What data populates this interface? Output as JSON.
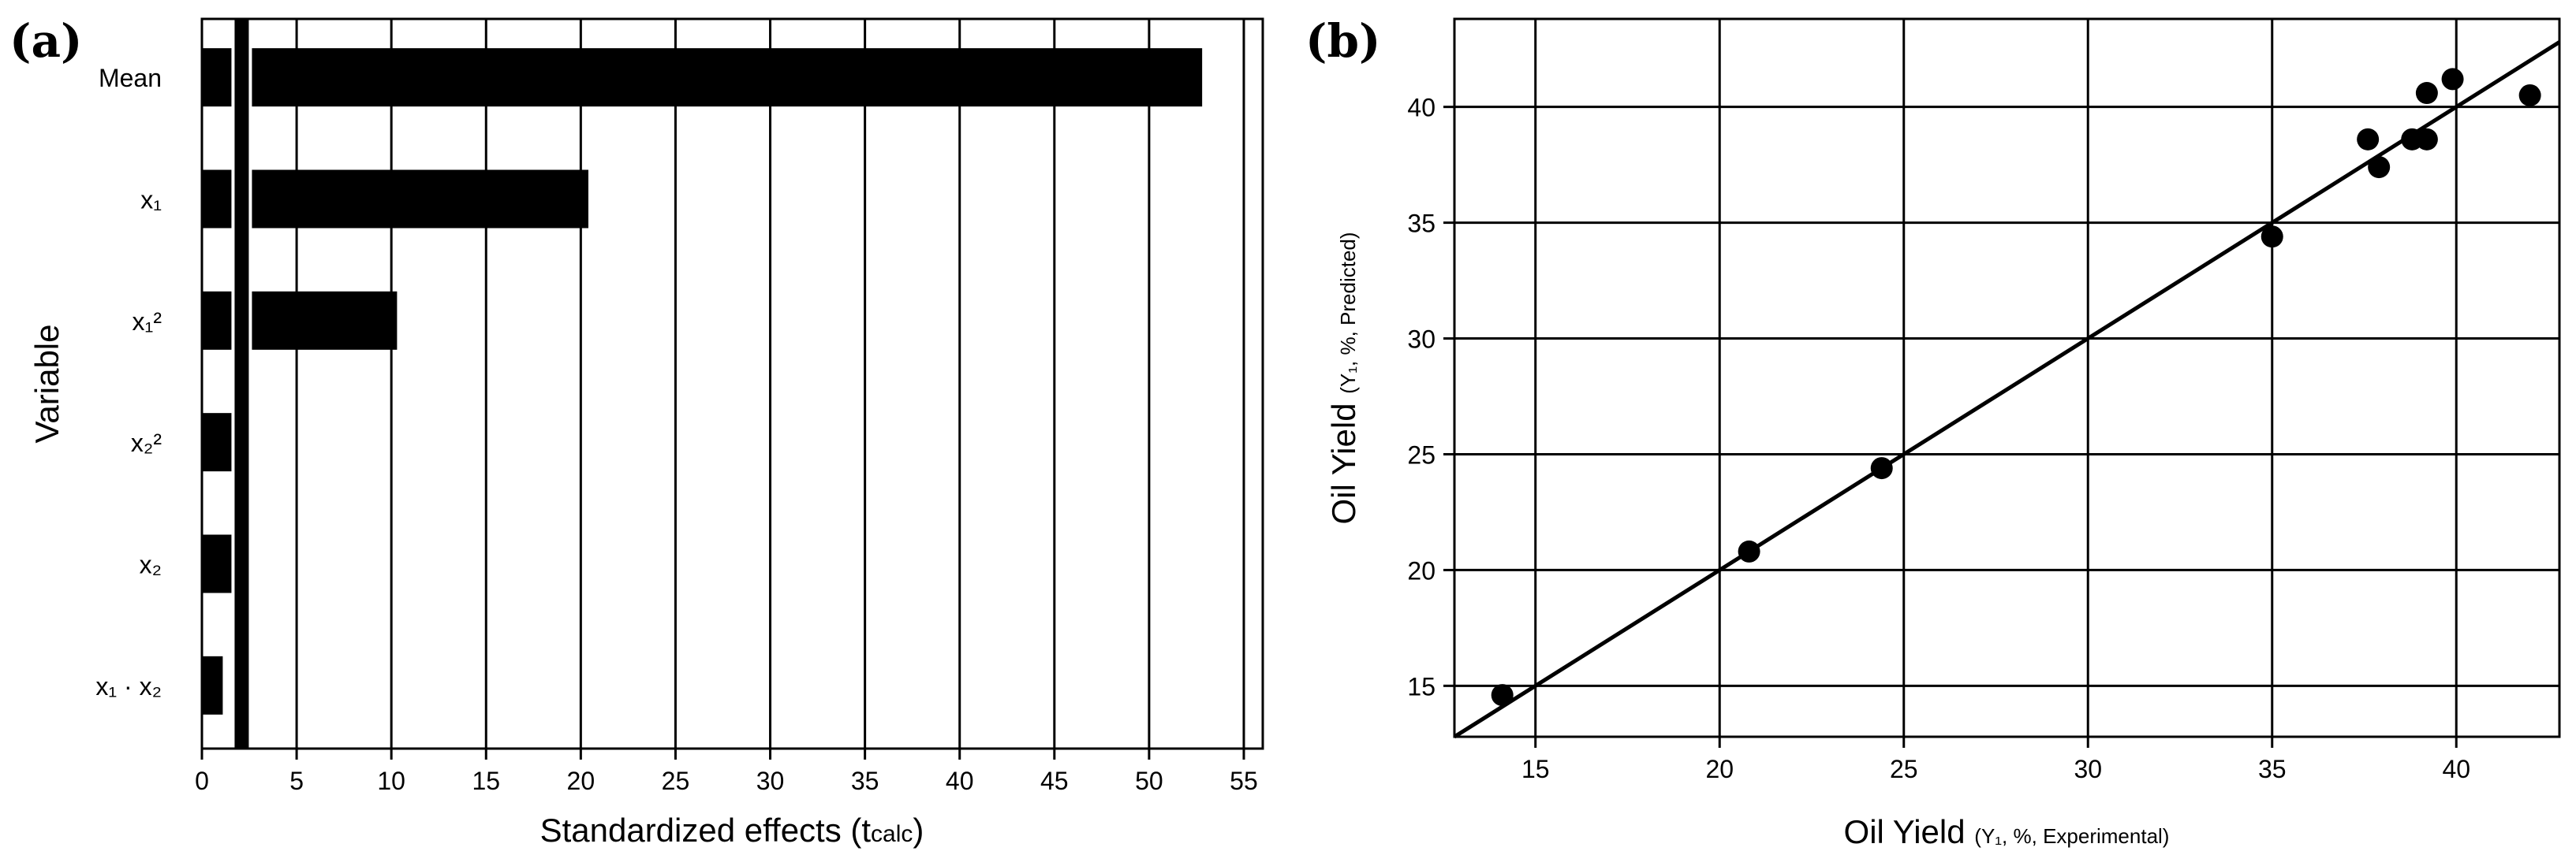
{
  "chart_data": [
    {
      "type": "bar",
      "orientation": "horizontal",
      "panel_label": "(a)",
      "title": "",
      "categories": [
        "Mean",
        "x₁",
        "x₁²",
        "x₂²",
        "x₂",
        "x₁ · x₂"
      ],
      "values": [
        52.8,
        20.4,
        10.3,
        2.5,
        2.3,
        1.1
      ],
      "reference_line": 2.1,
      "xlim": [
        0,
        56
      ],
      "xticks": [
        0,
        5,
        10,
        15,
        20,
        25,
        30,
        35,
        40,
        45,
        50,
        55
      ],
      "xlabel": {
        "main": "Standardized effects (t",
        "sub": "calc",
        "end": ")"
      },
      "ylabel": "Variable",
      "grid": "vertical",
      "bar_color": "#000000"
    },
    {
      "type": "scatter",
      "panel_label": "(b)",
      "title": "",
      "x": [
        14.1,
        20.8,
        24.4,
        35.0,
        37.6,
        37.9,
        38.8,
        39.2,
        39.2,
        39.9,
        42.0
      ],
      "y": [
        14.6,
        20.8,
        24.4,
        34.4,
        38.6,
        37.4,
        38.6,
        38.6,
        40.6,
        41.2,
        40.5
      ],
      "fit_line": {
        "x": [
          12.8,
          42.8
        ],
        "y": [
          12.8,
          42.8
        ]
      },
      "xlim": [
        12.8,
        42.8
      ],
      "ylim": [
        12.8,
        43.8
      ],
      "xticks": [
        15,
        20,
        25,
        30,
        35,
        40
      ],
      "yticks": [
        15,
        20,
        25,
        30,
        35,
        40
      ],
      "xlabel": {
        "main": "Oil Yield",
        "detail": "(Y₁, %, Experimental)"
      },
      "ylabel": {
        "main": "Oil Yield",
        "detail": "(Y₁, %, Predicted)"
      },
      "grid": "both",
      "point_color": "#000000"
    }
  ]
}
